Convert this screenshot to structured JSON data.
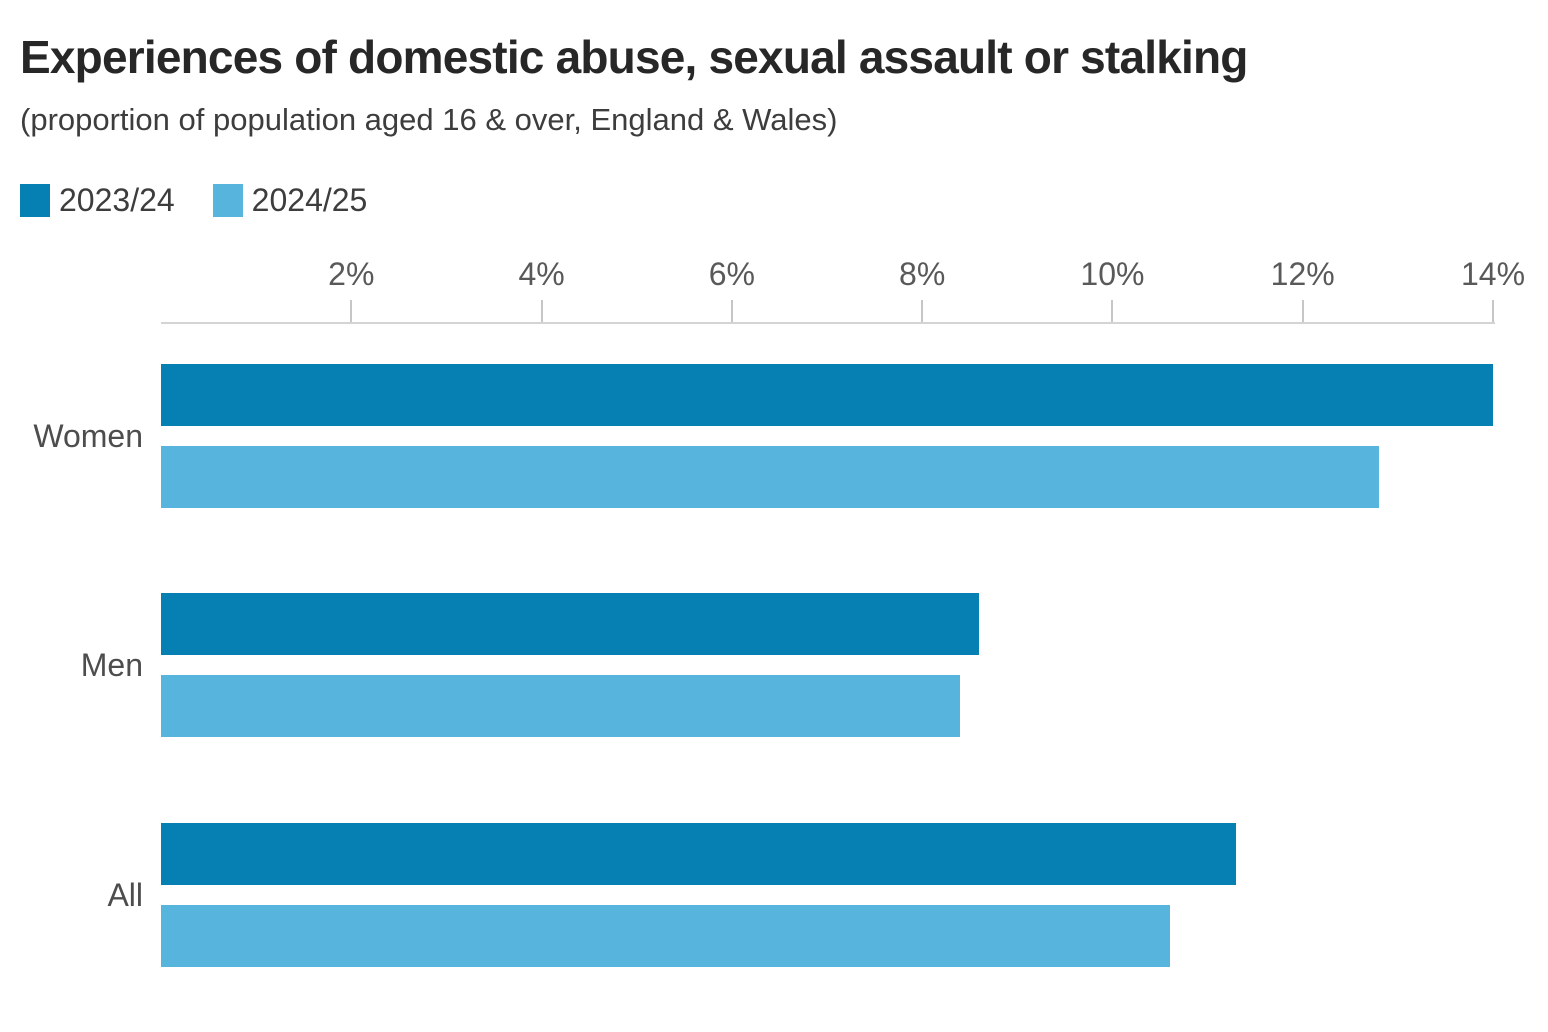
{
  "title": "Experiences of domestic abuse, sexual assault or stalking",
  "subtitle": "(proportion of population aged 16 & over, England & Wales)",
  "legend": {
    "items": [
      {
        "label": "2023/24",
        "color": "#0680b2"
      },
      {
        "label": "2024/25",
        "color": "#57b5dd"
      }
    ]
  },
  "chart_data": {
    "type": "bar",
    "orientation": "horizontal",
    "title": "Experiences of domestic abuse, sexual assault or stalking",
    "subtitle": "(proportion of population aged 16 & over, England & Wales)",
    "categories": [
      "Women",
      "Men",
      "All"
    ],
    "series": [
      {
        "name": "2023/24",
        "color": "#0680b2",
        "values": [
          14.0,
          8.6,
          11.3
        ]
      },
      {
        "name": "2024/25",
        "color": "#57b5dd",
        "values": [
          12.8,
          8.4,
          10.6
        ]
      }
    ],
    "x_axis": {
      "unit": "%",
      "min": 0,
      "max": 14,
      "tick_values": [
        2,
        4,
        6,
        8,
        10,
        12,
        14
      ],
      "tick_labels": [
        "2%",
        "4%",
        "6%",
        "8%",
        "10%",
        "12%",
        "14%"
      ]
    },
    "grid": false,
    "value_labels": false,
    "legend_position": "top-left"
  },
  "colors": {
    "series_2023_24": "#0680b2",
    "series_2024_25": "#57b5dd",
    "title_text": "#272727",
    "subtitle_text": "#3d3d3d",
    "tick_label_text": "#595959",
    "category_label_text": "#4d4d4d",
    "axis_line": "#d4d4d4",
    "tick_mark": "#c6c6c6",
    "background": "#ffffff"
  }
}
